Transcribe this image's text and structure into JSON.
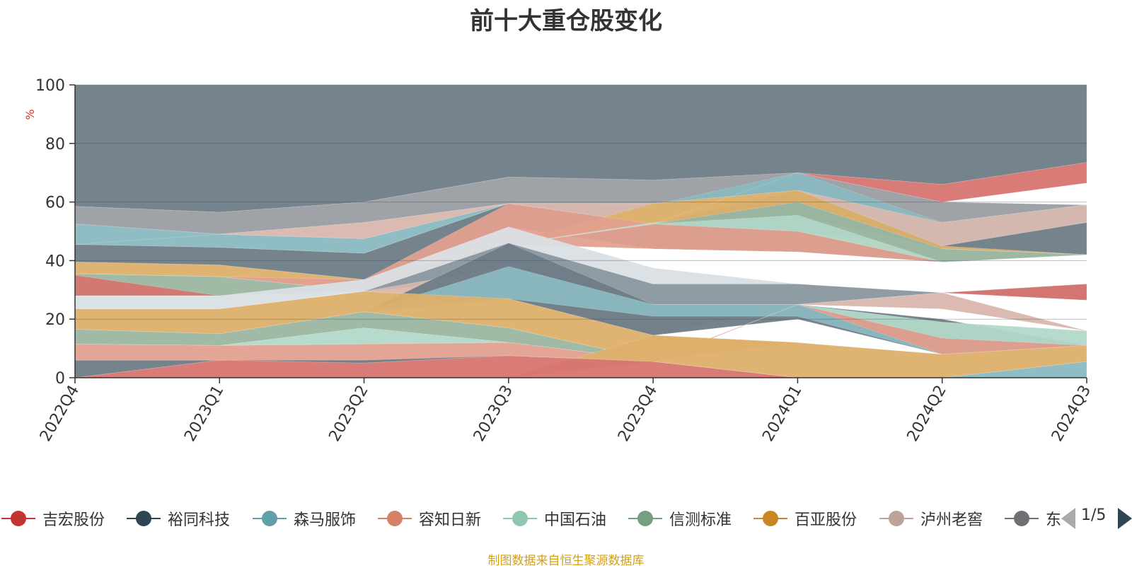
{
  "chart_data": {
    "type": "area",
    "title": "前十大重仓股变化",
    "ylabel": "%",
    "ylim": [
      0,
      100
    ],
    "yticks": [
      0,
      20,
      40,
      60,
      80,
      100
    ],
    "categories": [
      "2022Q4",
      "2023Q1",
      "2023Q2",
      "2023Q3",
      "2023Q4",
      "2024Q1",
      "2024Q2",
      "2024Q3"
    ],
    "bands": [
      {
        "name": "Remainder",
        "color": "#6e7c87",
        "lower": [
          58.5,
          56.5,
          60,
          68.5,
          67.5,
          70,
          66,
          73.5
        ],
        "upper": [
          100,
          100,
          100,
          100,
          100,
          100,
          100,
          100
        ]
      },
      {
        "name": "Band-A",
        "color": "#9a9ea3",
        "lower": [
          52.5,
          49,
          53,
          59.5,
          59.5,
          64,
          53,
          59
        ],
        "upper": [
          58.5,
          56.5,
          60,
          68.5,
          67.5,
          70,
          60,
          59
        ]
      },
      {
        "name": "Band-B",
        "color": "#8ab8c0",
        "lower": [
          45.5,
          44.5,
          42.5,
          59.5,
          52.5,
          60,
          45,
          53
        ],
        "upper": [
          52.5,
          49,
          47.5,
          59.5,
          59,
          70,
          53,
          59
        ]
      },
      {
        "name": "Band-C",
        "color": "#d8b6ad",
        "lower": [
          45.5,
          49,
          47.5,
          59.5,
          52.5,
          60,
          45,
          53
        ],
        "upper": [
          45.5,
          49,
          53,
          59.5,
          59.5,
          64,
          53,
          59
        ]
      },
      {
        "name": "Band-D",
        "color": "#6e7c87",
        "lower": [
          39.5,
          38.5,
          33.5,
          51.5,
          44,
          43,
          39.5,
          42
        ],
        "upper": [
          45.5,
          44.5,
          42.5,
          59.5,
          52.5,
          64,
          45,
          53
        ]
      },
      {
        "name": "Band-E",
        "color": "#ddb06a",
        "lower": [
          35.5,
          34.5,
          29.5,
          45.5,
          52.5,
          60,
          44,
          42
        ],
        "upper": [
          39.5,
          38.5,
          33.5,
          46,
          59.5,
          64,
          45,
          42
        ]
      },
      {
        "name": "Band-F",
        "color": "#e2a08f",
        "lower": [
          35.5,
          34.5,
          29.5,
          45.5,
          44,
          43,
          39.5,
          42
        ],
        "upper": [
          35.5,
          34.5,
          33.5,
          59.5,
          52.5,
          50,
          44,
          42
        ]
      },
      {
        "name": "Band-G",
        "color": "#b2d8c8",
        "lower": [
          35.5,
          34.5,
          29.5,
          45.5,
          52.5,
          50,
          39.5,
          42
        ],
        "upper": [
          35.5,
          34.5,
          29.5,
          45.5,
          53,
          55.5,
          44,
          42
        ]
      },
      {
        "name": "Band-H",
        "color": "#9bb6a0",
        "lower": [
          28,
          28,
          29.5,
          45.5,
          52.5,
          55.5,
          39.5,
          42
        ],
        "upper": [
          35.5,
          34.5,
          29.5,
          45.5,
          52.5,
          60,
          44,
          42
        ]
      },
      {
        "name": "Band-I",
        "color": "#d77470",
        "lower": [
          28,
          28,
          29.5,
          45.5,
          52.5,
          70,
          60,
          66.5
        ],
        "upper": [
          35,
          28,
          29.5,
          45.5,
          52.5,
          70,
          66,
          73.5
        ]
      },
      {
        "name": "Band-J",
        "color": "#dadfe5",
        "lower": [
          23.5,
          23.5,
          29.5,
          37.5,
          32,
          32,
          29,
          32
        ],
        "upper": [
          28,
          28,
          33.5,
          51.5,
          37.5,
          32,
          29,
          32
        ]
      },
      {
        "name": "Band-K",
        "color": "#8a979f",
        "lower": [
          23.5,
          23.5,
          29.5,
          34,
          25,
          25,
          29,
          26.5
        ],
        "upper": [
          23.5,
          23.5,
          29.5,
          46,
          32,
          32,
          29,
          32
        ]
      },
      {
        "name": "Band-L",
        "color": "#d77470",
        "lower": [
          23.5,
          23.5,
          29.5,
          34,
          25,
          25,
          29,
          26.5
        ],
        "upper": [
          23.5,
          23.5,
          29.5,
          34,
          25,
          25,
          29,
          32
        ]
      },
      {
        "name": "Band-M",
        "color": "#d8b6ad",
        "lower": [
          23.5,
          23.5,
          29.5,
          27,
          14.5,
          25,
          23.5,
          16
        ],
        "upper": [
          23.5,
          23.5,
          29.5,
          38,
          25,
          25,
          29,
          16
        ]
      },
      {
        "name": "Band-N",
        "color": "#6e7c87",
        "lower": [
          16.5,
          15,
          22.5,
          27,
          14.5,
          20,
          8,
          11
        ],
        "upper": [
          16.5,
          15,
          22.5,
          46,
          25,
          25,
          20,
          11
        ]
      },
      {
        "name": "Band-O",
        "color": "#8ab8c0",
        "lower": [
          16.5,
          15,
          22.5,
          27,
          21,
          21,
          8,
          11
        ],
        "upper": [
          16.5,
          15,
          22.5,
          38,
          25,
          25,
          8,
          11
        ]
      },
      {
        "name": "Band-P",
        "color": "#ddb06a",
        "lower": [
          16.5,
          15,
          22.5,
          17,
          6,
          12,
          8,
          11
        ],
        "upper": [
          23.5,
          23.5,
          29.5,
          27,
          14.5,
          12,
          8,
          11
        ]
      },
      {
        "name": "Band-Q",
        "color": "#9bb6a0",
        "lower": [
          11.5,
          11,
          17,
          12,
          6,
          12,
          8,
          11
        ],
        "upper": [
          16.5,
          15,
          22.5,
          17,
          6,
          12,
          8,
          11
        ]
      },
      {
        "name": "Band-R",
        "color": "#b2d8c8",
        "lower": [
          11.5,
          11,
          11.5,
          12,
          6,
          25,
          13.5,
          11
        ],
        "upper": [
          11.5,
          11,
          17,
          12,
          6,
          25,
          19,
          16
        ]
      },
      {
        "name": "Band-S",
        "color": "#e2a08f",
        "lower": [
          6,
          6,
          5,
          7.5,
          5.5,
          25,
          8,
          11
        ],
        "upper": [
          11.5,
          11,
          11.5,
          12,
          6,
          25,
          13.5,
          11
        ]
      },
      {
        "name": "Band-T",
        "color": "#ddb06a",
        "lower": [
          0,
          0,
          0,
          0,
          5.5,
          0,
          0,
          5.5
        ],
        "upper": [
          0,
          0,
          0,
          0,
          14.5,
          12,
          8,
          11
        ]
      },
      {
        "name": "Band-U",
        "color": "#6e7c87",
        "lower": [
          0,
          6,
          5,
          7.5,
          5.5,
          0,
          0,
          0
        ],
        "upper": [
          6,
          6,
          6,
          7.5,
          5.5,
          0,
          0,
          0
        ]
      },
      {
        "name": "Band-V",
        "color": "#d77470",
        "lower": [
          0,
          0,
          0,
          0,
          0,
          0,
          0,
          0
        ],
        "upper": [
          0,
          6,
          5,
          7.5,
          5.5,
          0,
          0,
          0
        ]
      },
      {
        "name": "Band-W",
        "color": "#8ab8c0",
        "lower": [
          0,
          0,
          0,
          0,
          0,
          0,
          0,
          0
        ],
        "upper": [
          0,
          0,
          0,
          0,
          0,
          0,
          0,
          5.5
        ]
      }
    ]
  },
  "legend": {
    "items": [
      {
        "label": "吉宏股份",
        "color": "#c23531"
      },
      {
        "label": "裕同科技",
        "color": "#2f4554"
      },
      {
        "label": "森马服饰",
        "color": "#61a0a8"
      },
      {
        "label": "容知日新",
        "color": "#d48265"
      },
      {
        "label": "中国石油",
        "color": "#91c7ae"
      },
      {
        "label": "信测标准",
        "color": "#749f83"
      },
      {
        "label": "百亚股份",
        "color": "#ca8622"
      },
      {
        "label": "泸州老窖",
        "color": "#bda29a"
      },
      {
        "label": "东",
        "color": "#6e7074"
      }
    ],
    "page": "1/5"
  },
  "source": "制图数据来自恒生聚源数据库"
}
